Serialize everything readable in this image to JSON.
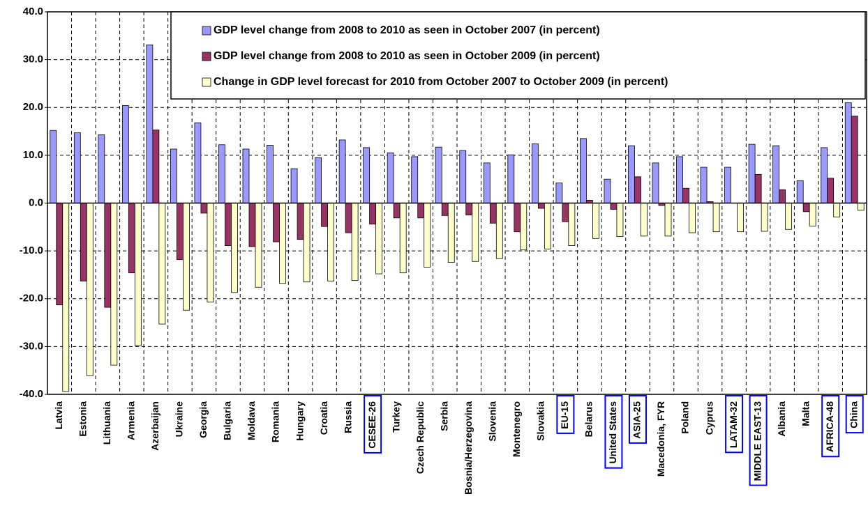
{
  "chart_data": {
    "type": "bar",
    "categories": [
      "Latvia",
      "Estonia",
      "Lithuania",
      "Armenia",
      "Azerbaijan",
      "Ukraine",
      "Georgia",
      "Bulgaria",
      "Moldava",
      "Romania",
      "Hungary",
      "Croatia",
      "Russia",
      "CESEE-26",
      "Turkey",
      "Czech Republic",
      "Serbia",
      "Bosnia/Herzegovina",
      "Slovenia",
      "Montenegro",
      "Slovakia",
      "EU-15",
      "Belarus",
      "United States",
      "ASIA-25",
      "Macedonia, FYR",
      "Poland",
      "Cyprus",
      "LATAM-32",
      "MIDDLE EAST-13",
      "Albania",
      "Malta",
      "AFRICA-48",
      "China"
    ],
    "boxed": [
      false,
      false,
      false,
      false,
      false,
      false,
      false,
      false,
      false,
      false,
      false,
      false,
      false,
      true,
      false,
      false,
      false,
      false,
      false,
      false,
      false,
      true,
      false,
      true,
      true,
      false,
      false,
      false,
      true,
      true,
      false,
      false,
      true,
      true
    ],
    "series": [
      {
        "name": "GDP level change from 2008 to 2010 as seen in October 2007 (in percent)",
        "color": "#9999ff",
        "values": [
          15.2,
          14.7,
          14.3,
          20.4,
          33.1,
          11.3,
          16.8,
          12.2,
          11.3,
          12.1,
          7.2,
          9.5,
          13.2,
          11.6,
          10.5,
          9.7,
          11.7,
          11.0,
          8.4,
          10.1,
          12.4,
          4.2,
          13.5,
          5.0,
          12.0,
          8.4,
          9.7,
          7.5,
          7.5,
          12.3,
          12.0,
          4.7,
          11.6,
          21.0
        ]
      },
      {
        "name": "GDP level change from 2008 to 2010 as seen in October 2009 (in percent)",
        "color": "#993366",
        "values": [
          -21.3,
          -16.3,
          -21.8,
          -14.6,
          15.3,
          -11.8,
          -2.1,
          -8.9,
          -9.1,
          -8.1,
          -7.6,
          -4.9,
          -6.2,
          -4.4,
          -3.1,
          -3.1,
          -2.6,
          -2.5,
          -4.2,
          -6.0,
          -1.1,
          -3.9,
          0.6,
          -1.3,
          5.5,
          -0.5,
          3.1,
          0.3,
          0.0,
          6.0,
          2.8,
          -1.8,
          5.2,
          18.2
        ]
      },
      {
        "name": "Change in GDP level forecast for 2010 from October 2007 to October 2009 (in percent)",
        "color": "#ffffcc",
        "values": [
          -39.4,
          -36.1,
          -33.9,
          -29.8,
          -25.3,
          -22.4,
          -20.7,
          -18.7,
          -17.6,
          -16.8,
          -16.5,
          -16.3,
          -16.2,
          -14.8,
          -14.6,
          -13.4,
          -12.4,
          -12.2,
          -11.6,
          -9.8,
          -9.6,
          -8.9,
          -7.4,
          -7.0,
          -6.9,
          -6.9,
          -6.2,
          -6.0,
          -6.0,
          -5.9,
          -5.5,
          -4.8,
          -2.9,
          -1.5
        ]
      }
    ],
    "ylim": [
      -40,
      40
    ],
    "yticks": [
      {
        "value": -40,
        "label": "-40.0"
      },
      {
        "value": -30,
        "label": "-30.0"
      },
      {
        "value": -20,
        "label": "-20.0"
      },
      {
        "value": -10,
        "label": "-10.0"
      },
      {
        "value": 0,
        "label": "0.0"
      },
      {
        "value": 10,
        "label": "10.0"
      },
      {
        "value": 20,
        "label": "20.0"
      },
      {
        "value": 30,
        "label": "30.0"
      },
      {
        "value": 40,
        "label": "40.0"
      }
    ],
    "grid": true,
    "legend": "top-right"
  }
}
